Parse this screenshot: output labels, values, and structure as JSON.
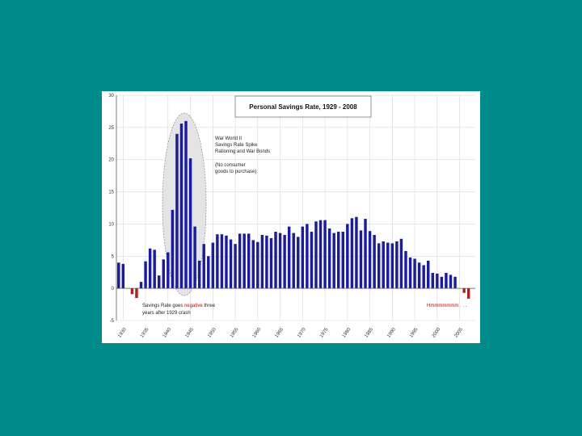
{
  "colors": {
    "background": "#008b8b",
    "positive_bar": "#1a1aa8",
    "negative_bar": "#b02020",
    "highlight": "#cc0000"
  },
  "chart_data": {
    "type": "bar",
    "title": "Personal Savings Rate, 1929 - 2008",
    "xlabel": "",
    "ylabel": "",
    "ylim": [
      -5,
      30
    ],
    "yticks": [
      "30",
      "25",
      "20",
      "15",
      "10",
      "5",
      "0",
      "-5"
    ],
    "xticks": [
      "1930",
      "1935",
      "1940",
      "1945",
      "1950",
      "1955",
      "1960",
      "1965",
      "1970",
      "1975",
      "1980",
      "1985",
      "1990",
      "1995",
      "2000",
      "2005"
    ],
    "grid": true,
    "x": [
      1929,
      1930,
      1931,
      1932,
      1933,
      1934,
      1935,
      1936,
      1937,
      1938,
      1939,
      1940,
      1941,
      1942,
      1943,
      1944,
      1945,
      1946,
      1947,
      1948,
      1949,
      1950,
      1951,
      1952,
      1953,
      1954,
      1955,
      1956,
      1957,
      1958,
      1959,
      1960,
      1961,
      1962,
      1963,
      1964,
      1965,
      1966,
      1967,
      1968,
      1969,
      1970,
      1971,
      1972,
      1973,
      1974,
      1975,
      1976,
      1977,
      1978,
      1979,
      1980,
      1981,
      1982,
      1983,
      1984,
      1985,
      1986,
      1987,
      1988,
      1989,
      1990,
      1991,
      1992,
      1993,
      1994,
      1995,
      1996,
      1997,
      1998,
      1999,
      2000,
      2001,
      2002,
      2003,
      2004,
      2005,
      2006,
      2007,
      2008
    ],
    "values": [
      4.0,
      3.8,
      0.0,
      -0.9,
      -1.5,
      1.0,
      4.2,
      6.2,
      6.0,
      2.0,
      4.5,
      5.6,
      12.2,
      24.0,
      25.6,
      26.0,
      20.2,
      9.6,
      4.3,
      6.9,
      5.0,
      7.1,
      8.4,
      8.4,
      8.2,
      7.6,
      6.9,
      8.5,
      8.5,
      8.5,
      7.5,
      7.2,
      8.3,
      8.2,
      7.8,
      8.8,
      8.6,
      8.3,
      9.6,
      8.6,
      8.0,
      9.6,
      10.0,
      8.8,
      10.4,
      10.6,
      10.6,
      9.3,
      8.6,
      8.8,
      8.8,
      10.0,
      10.9,
      11.1,
      9.0,
      10.8,
      8.9,
      8.3,
      7.0,
      7.3,
      7.1,
      7.0,
      7.3,
      7.7,
      5.8,
      4.8,
      4.6,
      4.0,
      3.6,
      4.3,
      2.4,
      2.3,
      1.8,
      2.4,
      2.1,
      1.8,
      0.0,
      -0.7,
      -1.6,
      0.0
    ],
    "annotations": [
      "War World II",
      "Savings Rate Spike",
      "Rationing and War Bonds",
      "(No consumer",
      "goods to purchase)",
      "Savings Rate goes negative three",
      "years after 1929 crash",
      "Hmmmmmmm . . ."
    ]
  }
}
